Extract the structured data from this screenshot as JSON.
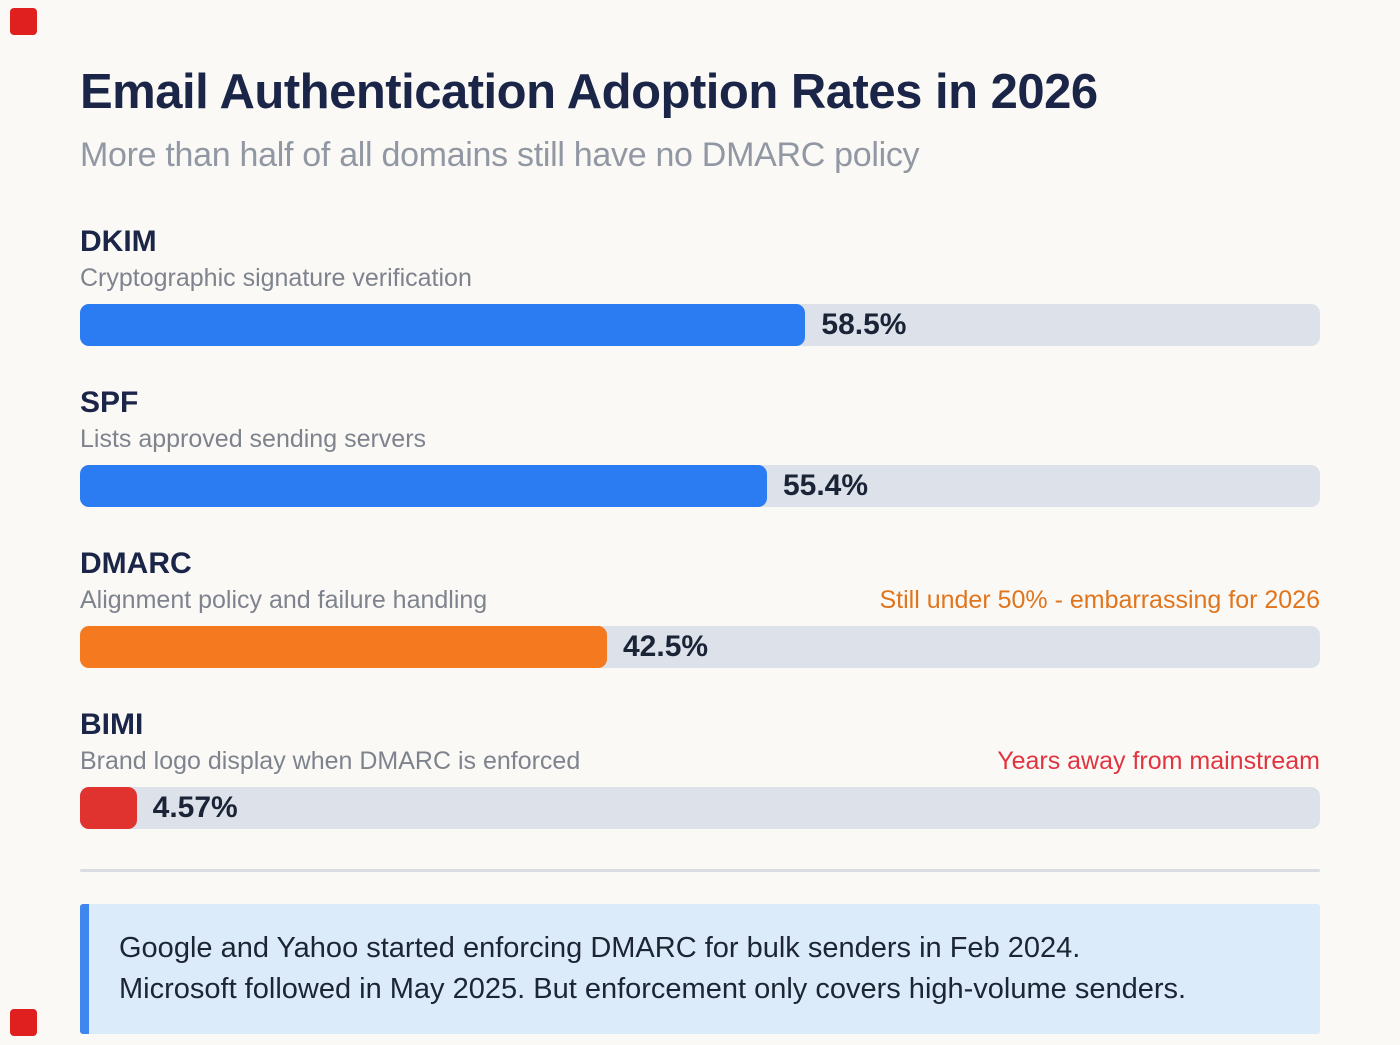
{
  "page": {
    "title": "Email Authentication Adoption Rates in 2026",
    "subtitle": "More than half of all domains still have no DMARC policy"
  },
  "chart_data": {
    "type": "bar",
    "orientation": "horizontal",
    "title": "Email Authentication Adoption Rates in 2026",
    "subtitle": "More than half of all domains still have no DMARC policy",
    "xlim": [
      0,
      100
    ],
    "unit": "percent",
    "grid": false,
    "legend": "none",
    "categories": [
      "DKIM",
      "SPF",
      "DMARC",
      "BIMI"
    ],
    "values": [
      58.5,
      55.4,
      42.5,
      4.57
    ],
    "bars": [
      {
        "label": "DKIM",
        "description": "Cryptographic signature verification",
        "value": 58.5,
        "value_label": "58.5%",
        "color": "#2b7bf3",
        "annotation": ""
      },
      {
        "label": "SPF",
        "description": "Lists approved sending servers",
        "value": 55.4,
        "value_label": "55.4%",
        "color": "#2b7bf3",
        "annotation": ""
      },
      {
        "label": "DMARC",
        "description": "Alignment policy and failure handling",
        "value": 42.5,
        "value_label": "42.5%",
        "color": "#f5791e",
        "annotation": "Still under 50% - embarrassing for 2026",
        "annotation_color": "#e0751d"
      },
      {
        "label": "BIMI",
        "description": "Brand logo display when DMARC is enforced",
        "value": 4.57,
        "value_label": "4.57%",
        "color": "#e0322f",
        "annotation": "Years away from mainstream",
        "annotation_color": "#e03540"
      }
    ]
  },
  "note": {
    "line1": "Google and Yahoo started enforcing DMARC for bulk senders in Feb 2024.",
    "line2": "Microsoft followed in May 2025. But enforcement only covers high-volume senders."
  },
  "colors": {
    "background": "#faf9f6",
    "title": "#1a2548",
    "subtitle": "#9298a3",
    "track": "#dde2ea",
    "blue_bar": "#2b7bf3",
    "orange_bar": "#f5791e",
    "red_bar": "#e0322f",
    "note_background": "#dcebfa",
    "note_border": "#3f86ef",
    "corner_marker": "#e01f1f"
  }
}
